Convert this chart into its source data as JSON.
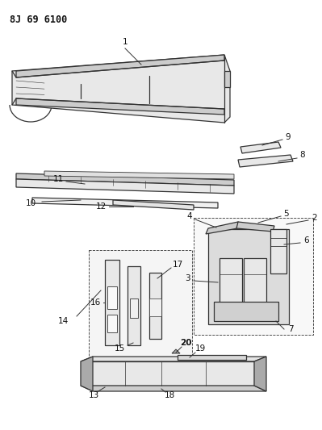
{
  "title": "8J 69 6100",
  "background_color": "#ffffff",
  "figsize": [
    3.99,
    5.33
  ],
  "dpi": 100,
  "line_color": "#333333",
  "fill_light": "#e8e8e8",
  "fill_mid": "#cccccc",
  "fill_dark": "#aaaaaa"
}
